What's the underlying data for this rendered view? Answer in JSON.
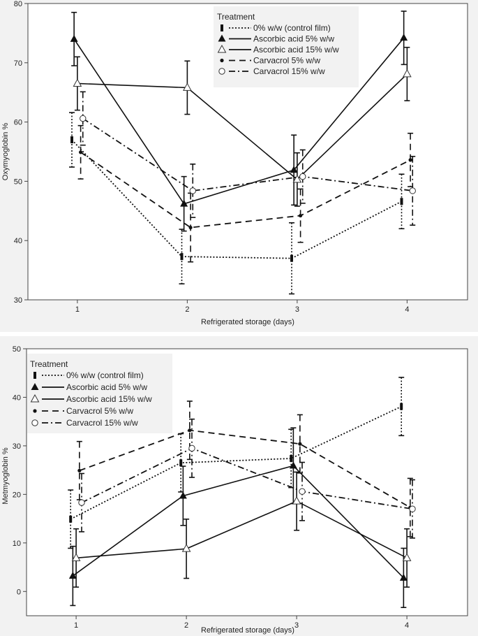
{
  "chart_data": [
    {
      "type": "line",
      "title": "",
      "xlabel": "Refrigerated storage (days)",
      "ylabel": "Oxymyoglobin %",
      "xlim": [
        0.55,
        4.55
      ],
      "ylim": [
        30,
        80
      ],
      "x_ticks": [
        1,
        2,
        3,
        4
      ],
      "y_ticks": [
        30,
        40,
        50,
        60,
        70,
        80
      ],
      "legend_title": "Treatment",
      "legend_position": "top-right",
      "series": [
        {
          "name": "0% w/w (control film)",
          "marker": "bar",
          "dash": "dotted",
          "x": [
            1,
            2,
            3,
            4
          ],
          "values": [
            57.0,
            37.3,
            37.0,
            46.6
          ],
          "err": [
            4.6,
            4.6,
            6.0,
            4.6
          ]
        },
        {
          "name": "Ascorbic acid 5% w/w",
          "marker": "triangle-filled",
          "dash": "solid",
          "x": [
            1,
            2,
            3,
            4
          ],
          "values": [
            74.0,
            46.2,
            51.9,
            74.2
          ],
          "err": [
            4.5,
            4.6,
            5.9,
            4.5
          ]
        },
        {
          "name": "Ascorbic acid 15% w/w",
          "marker": "triangle-open",
          "dash": "solid",
          "x": [
            1,
            2,
            3,
            4
          ],
          "values": [
            66.5,
            65.8,
            50.3,
            68.1
          ],
          "err": [
            4.5,
            4.5,
            4.5,
            4.5
          ]
        },
        {
          "name": "Carvacrol 5% w/w",
          "marker": "dot-filled",
          "dash": "dashed",
          "x": [
            1,
            2,
            3,
            4
          ],
          "values": [
            54.9,
            42.2,
            44.2,
            53.6
          ],
          "err": [
            4.5,
            5.8,
            4.5,
            4.5
          ]
        },
        {
          "name": "Carvacrol 15% w/w",
          "marker": "circle-open",
          "dash": "dashdot",
          "x": [
            1,
            2,
            3,
            4
          ],
          "values": [
            60.6,
            48.4,
            50.8,
            48.4
          ],
          "err": [
            4.5,
            4.5,
            4.5,
            5.8
          ]
        }
      ]
    },
    {
      "type": "line",
      "title": "",
      "xlabel": "Refrigerated storage (days)",
      "ylabel": "Metmyoglobin %",
      "xlim": [
        0.55,
        4.55
      ],
      "ylim": [
        -5,
        50
      ],
      "x_ticks": [
        1,
        2,
        3,
        4
      ],
      "y_ticks": [
        0,
        10,
        20,
        30,
        40,
        50
      ],
      "legend_title": "Treatment",
      "legend_position": "top-left",
      "series": [
        {
          "name": "0% w/w (control film)",
          "marker": "bar",
          "dash": "dotted",
          "x": [
            1,
            2,
            3,
            4
          ],
          "values": [
            14.9,
            26.5,
            27.4,
            38.1
          ],
          "err": [
            6.0,
            6.0,
            6.0,
            6.0
          ]
        },
        {
          "name": "Ascorbic acid 5% w/w",
          "marker": "triangle-filled",
          "dash": "solid",
          "x": [
            1,
            2,
            3,
            4
          ],
          "values": [
            3.2,
            19.7,
            25.9,
            2.8
          ],
          "err": [
            6.1,
            6.1,
            7.8,
            6.1
          ]
        },
        {
          "name": "Ascorbic acid 15% w/w",
          "marker": "triangle-open",
          "dash": "solid",
          "x": [
            1,
            2,
            3,
            4
          ],
          "values": [
            6.9,
            8.8,
            18.6,
            6.9
          ],
          "err": [
            6.0,
            6.1,
            6.0,
            6.0
          ]
        },
        {
          "name": "Carvacrol 5% w/w",
          "marker": "dot-filled",
          "dash": "dashed",
          "x": [
            1,
            2,
            3,
            4
          ],
          "values": [
            24.9,
            33.2,
            30.4,
            17.3
          ],
          "err": [
            6.0,
            6.0,
            6.0,
            6.0
          ]
        },
        {
          "name": "Carvacrol 15% w/w",
          "marker": "circle-open",
          "dash": "dashdot",
          "x": [
            1,
            2,
            3,
            4
          ],
          "values": [
            18.3,
            29.5,
            20.6,
            17.0
          ],
          "err": [
            6.0,
            6.0,
            6.0,
            6.0
          ]
        }
      ]
    }
  ]
}
